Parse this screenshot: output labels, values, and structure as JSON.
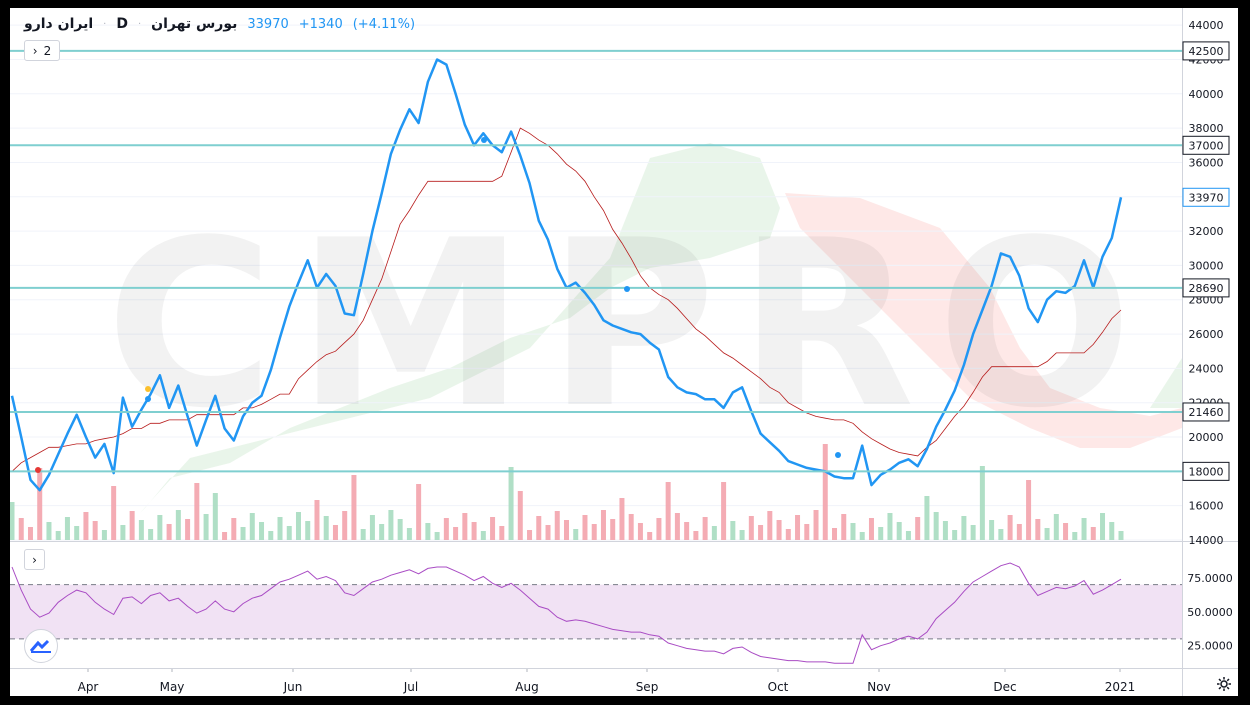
{
  "header": {
    "symbol": "ایران دارو",
    "interval": "D",
    "exchange": "بورس تهران",
    "last_price": "33970",
    "change": "+1340",
    "change_pct": "(+4.11%)"
  },
  "legend_toggle": {
    "arrow": "›",
    "count": "2"
  },
  "rsi_toggle": {
    "arrow": "›"
  },
  "icons": {
    "logo": "tradingview-logo-icon",
    "settings": "gear-icon",
    "toggle": "chevron-right-icon"
  },
  "watermark": "CMPRO",
  "colors": {
    "price": "#2196f3",
    "baseline": "#b71c1c",
    "levels": "#7fcfd0",
    "rsi": "#a94cc4",
    "up_vol": "#a7dcc0",
    "down_vol": "#f3a3ac"
  },
  "chart_data": [
    {
      "type": "line",
      "x_axis_labels": [
        "Apr",
        "May",
        "Jun",
        "Jul",
        "Aug",
        "Sep",
        "Oct",
        "Nov",
        "Dec",
        "2021"
      ],
      "ylim": [
        14000,
        45000
      ],
      "y_ticks": [
        14000,
        16000,
        18000,
        20000,
        22000,
        24000,
        26000,
        28000,
        30000,
        32000,
        34000,
        36000,
        38000,
        40000,
        42000,
        44000
      ],
      "horizontal_levels": [
        42500,
        37000,
        28690,
        21460,
        18000
      ],
      "last_value": 33970,
      "series": [
        {
          "values": [
            22400,
            20000,
            17500,
            16900,
            17800,
            19000,
            20200,
            21300,
            20000,
            18800,
            19600,
            17900,
            22300,
            20600,
            21600,
            22500,
            23600,
            21700,
            23000,
            21200,
            19500,
            21000,
            22400,
            20500,
            19800,
            21200,
            22000,
            22400,
            23900,
            25800,
            27600,
            29000,
            30300,
            28700,
            29500,
            28800,
            27200,
            27100,
            29500,
            32000,
            34200,
            36500,
            37900,
            39100,
            38300,
            40700,
            42000,
            41700,
            40000,
            38200,
            37000,
            37700,
            37000,
            36600,
            37800,
            36400,
            34800,
            32600,
            31500,
            29800,
            28700,
            29000,
            28400,
            27700,
            26800,
            26500,
            26300,
            26100,
            26000,
            25500,
            25100,
            23500,
            22900,
            22600,
            22500,
            22200,
            22200,
            21700,
            22600,
            22900,
            21500,
            20200,
            19700,
            19200,
            18600,
            18400,
            18200,
            18100,
            18000,
            17700,
            17600,
            17600,
            19500,
            17200,
            17800,
            18100,
            18500,
            18700,
            18300,
            19300,
            20600,
            21600,
            22700,
            24200,
            26000,
            27400,
            28800,
            30700,
            30500,
            29400,
            27500,
            26700,
            28000,
            28500,
            28400,
            28800,
            30300,
            28700,
            30500,
            31600,
            33970
          ]
        },
        {
          "values": [
            18000,
            18500,
            18800,
            19100,
            19400,
            19400,
            19500,
            19600,
            19600,
            19800,
            19900,
            20000,
            20200,
            20500,
            20500,
            20800,
            20800,
            21000,
            21000,
            21000,
            21300,
            21300,
            21300,
            21300,
            21300,
            21700,
            21700,
            21900,
            22200,
            22500,
            22500,
            23400,
            23900,
            24400,
            24800,
            25000,
            25500,
            26000,
            26800,
            28000,
            29200,
            30800,
            32400,
            33200,
            34100,
            34900,
            34900,
            34900,
            34900,
            34900,
            34900,
            34900,
            34900,
            35200,
            36600,
            38000,
            37700,
            37300,
            37000,
            36500,
            35900,
            35500,
            34900,
            34000,
            33200,
            32100,
            31300,
            30400,
            29400,
            28700,
            28300,
            28000,
            27500,
            26900,
            26300,
            25900,
            25400,
            24900,
            24600,
            24200,
            23800,
            23400,
            22900,
            22600,
            22000,
            21700,
            21400,
            21200,
            21100,
            21000,
            21000,
            20800,
            20300,
            19900,
            19600,
            19300,
            19100,
            19000,
            18900,
            19400,
            19800,
            20500,
            21200,
            21800,
            22600,
            23500,
            24100,
            24100,
            24100,
            24100,
            24100,
            24100,
            24400,
            24900,
            24900,
            24900,
            24900,
            25400,
            26100,
            26900,
            27400
          ]
        }
      ]
    },
    {
      "type": "line",
      "ylim": [
        10,
        100
      ],
      "y_ticks": [
        25,
        50,
        75
      ],
      "y_tick_labels": [
        "25.0000",
        "50.0000",
        "75.0000"
      ],
      "band": [
        30,
        70
      ],
      "series": [
        {
          "values": [
            83,
            66,
            52,
            46,
            49,
            57,
            62,
            66,
            64,
            57,
            52,
            48,
            60,
            61,
            56,
            62,
            64,
            58,
            60,
            54,
            49,
            52,
            58,
            52,
            50,
            56,
            60,
            62,
            67,
            72,
            74,
            77,
            80,
            74,
            76,
            73,
            64,
            62,
            67,
            72,
            74,
            77,
            79,
            81,
            78,
            82,
            83,
            83,
            80,
            77,
            73,
            76,
            71,
            68,
            71,
            66,
            60,
            54,
            52,
            46,
            43,
            44,
            43,
            41,
            39,
            37,
            36,
            35,
            35,
            33,
            32,
            27,
            25,
            23,
            22,
            21,
            21,
            19,
            23,
            24,
            20,
            17,
            16,
            15,
            14,
            14,
            13,
            13,
            13,
            12,
            12,
            12,
            33,
            22,
            25,
            27,
            30,
            32,
            30,
            35,
            45,
            51,
            57,
            65,
            72,
            76,
            80,
            84,
            86,
            83,
            71,
            62,
            65,
            68,
            67,
            69,
            73,
            63,
            66,
            70,
            74
          ]
        }
      ]
    }
  ]
}
